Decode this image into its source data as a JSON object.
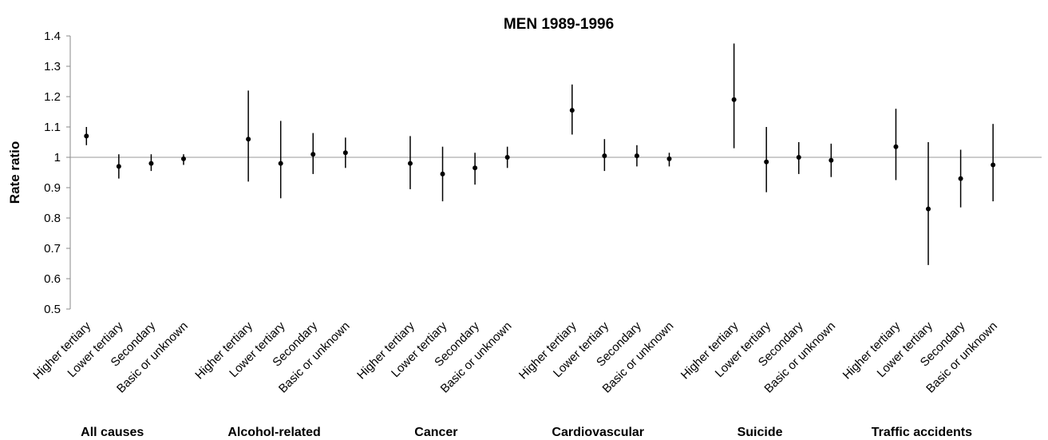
{
  "chart_data": {
    "type": "errorbar",
    "title": "MEN 1989-1996",
    "y_label": "Rate ratio",
    "groups": [
      "All causes",
      "Alcohol-related",
      "Cancer",
      "Cardiovascular",
      "Suicide",
      "Traffic accidents"
    ],
    "categories": [
      "Higher tertiary",
      "Lower tertiary",
      "Secondary",
      "Basic or unknown",
      "Higher tertiary",
      "Lower tertiary",
      "Secondary",
      "Basic or unknown",
      "Higher tertiary",
      "Lower tertiary",
      "Secondary",
      "Basic or unknown",
      "Higher tertiary",
      "Lower tertiary",
      "Secondary",
      "Basic or unknown",
      "Higher tertiary",
      "Lower tertiary",
      "Secondary",
      "Basic or unknown",
      "Higher tertiary",
      "Lower tertiary",
      "Secondary",
      "Basic or unknown"
    ],
    "series": [
      {
        "color": "#000000",
        "values": [
          1.07,
          0.97,
          0.98,
          0.995,
          1.06,
          0.98,
          1.01,
          1.015,
          0.98,
          0.945,
          0.965,
          1.0,
          1.155,
          1.005,
          1.005,
          0.995,
          1.19,
          0.985,
          1.0,
          0.99,
          1.035,
          0.83,
          0.93,
          0.975
        ],
        "lower": [
          1.04,
          0.93,
          0.955,
          0.975,
          0.92,
          0.865,
          0.945,
          0.965,
          0.895,
          0.855,
          0.91,
          0.965,
          1.075,
          0.955,
          0.97,
          0.97,
          1.03,
          0.885,
          0.945,
          0.935,
          0.925,
          0.645,
          0.835,
          0.855
        ],
        "upper": [
          1.1,
          1.01,
          1.01,
          1.01,
          1.22,
          1.12,
          1.08,
          1.065,
          1.07,
          1.035,
          1.015,
          1.035,
          1.24,
          1.06,
          1.04,
          1.015,
          1.375,
          1.1,
          1.05,
          1.045,
          1.16,
          1.05,
          1.025,
          1.11
        ]
      }
    ],
    "ylim": [
      0.5,
      1.4
    ],
    "yticks": [
      0.5,
      0.6,
      0.7,
      0.8,
      0.9,
      1,
      1.1,
      1.2,
      1.3,
      1.4
    ],
    "x_axis_at": 1
  }
}
